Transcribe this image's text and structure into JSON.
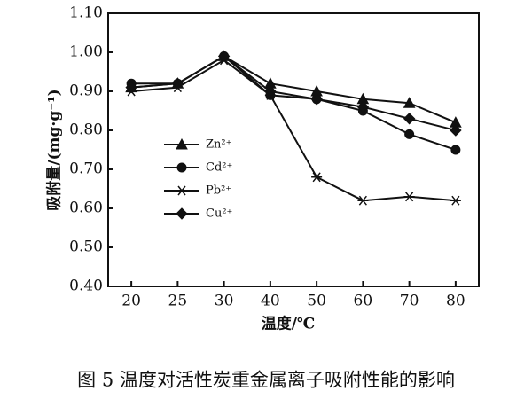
{
  "chart_data": {
    "type": "line",
    "categories": [
      "20",
      "25",
      "30",
      "40",
      "50",
      "60",
      "70",
      "80"
    ],
    "series": [
      {
        "name": "Zn²⁺",
        "color": "#111111",
        "marker": "triangle",
        "values": [
          0.91,
          0.92,
          0.99,
          0.92,
          0.9,
          0.88,
          0.87,
          0.82
        ]
      },
      {
        "name": "Cd²⁺",
        "color": "#111111",
        "marker": "circle",
        "values": [
          0.92,
          0.92,
          0.99,
          0.89,
          0.88,
          0.85,
          0.79,
          0.75
        ]
      },
      {
        "name": "Pb²⁺",
        "color": "#111111",
        "marker": "star",
        "values": [
          0.9,
          0.91,
          0.98,
          0.89,
          0.68,
          0.62,
          0.63,
          0.62
        ]
      },
      {
        "name": "Cu²⁺",
        "color": "#111111",
        "marker": "diamond",
        "values": [
          0.91,
          0.92,
          0.99,
          0.9,
          0.88,
          0.86,
          0.83,
          0.8
        ]
      }
    ],
    "ylim": [
      0.4,
      1.1
    ],
    "yticks": [
      {
        "value": 0.4,
        "label": "0.40"
      },
      {
        "value": 0.5,
        "label": "0.50"
      },
      {
        "value": 0.6,
        "label": "0.60"
      },
      {
        "value": 0.7,
        "label": "0.70"
      },
      {
        "value": 0.8,
        "label": "0.80"
      },
      {
        "value": 0.9,
        "label": "0.90"
      },
      {
        "value": 1.0,
        "label": "1.00"
      },
      {
        "value": 1.1,
        "label": "1.10"
      }
    ],
    "ylabel": "吸附量/(mg·g⁻¹)",
    "xlabel": "温度/℃",
    "caption": "图 5   温度对活性炭重金属离子吸附性能的影响"
  }
}
